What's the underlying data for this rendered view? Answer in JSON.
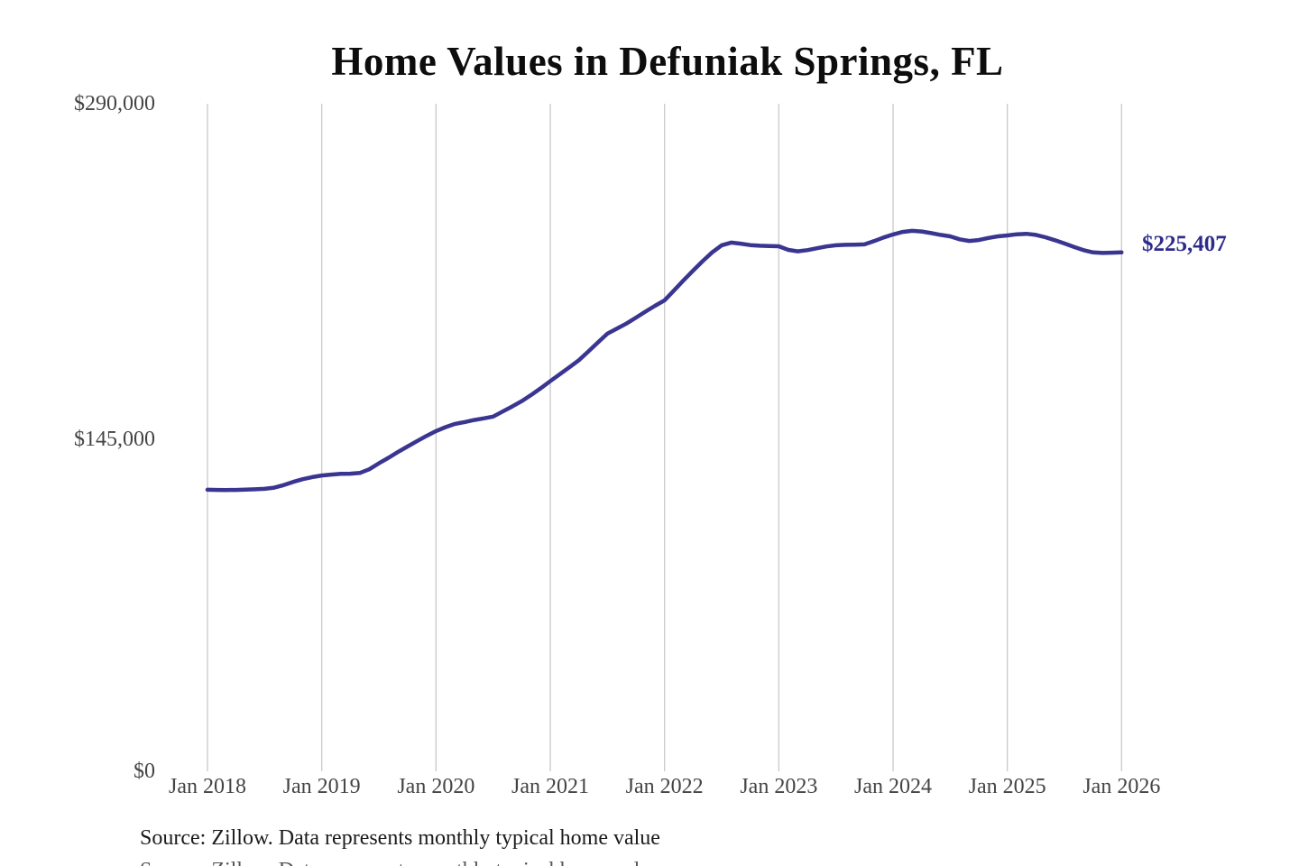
{
  "chart_data": {
    "type": "line",
    "title": "Home Values in Defuniak Springs, FL",
    "xlabel": "",
    "ylabel": "",
    "x_start": "Jan 2018",
    "x_end": "Jan 2026",
    "frequency": "monthly",
    "x_tick_labels": [
      "Jan 2018",
      "Jan 2019",
      "Jan 2020",
      "Jan 2021",
      "Jan 2022",
      "Jan 2023",
      "Jan 2024",
      "Jan 2025",
      "Jan 2026"
    ],
    "y_tick_labels": [
      "$290,000",
      "$145,000",
      "$0"
    ],
    "y_tick_values": [
      290000,
      145000,
      0
    ],
    "ylim": [
      0,
      290000
    ],
    "grid": "vertical-only",
    "legend": "none",
    "series": [
      {
        "name": "Monthly typical home value",
        "values": [
          122300,
          122250,
          122200,
          122250,
          122350,
          122500,
          122700,
          123200,
          124300,
          125700,
          126900,
          127800,
          128500,
          128900,
          129200,
          129300,
          129600,
          131200,
          133800,
          136200,
          138700,
          141100,
          143400,
          145700,
          147800,
          149500,
          150900,
          151700,
          152600,
          153300,
          154100,
          156300,
          158500,
          160800,
          163500,
          166400,
          169500,
          172500,
          175500,
          178600,
          182400,
          186300,
          190100,
          192300,
          194500,
          197100,
          199700,
          202200,
          204600,
          208900,
          213300,
          217500,
          221600,
          225400,
          228500,
          229700,
          229200,
          228600,
          228300,
          228200,
          228100,
          226500,
          225900,
          226400,
          227200,
          228000,
          228500,
          228700,
          228800,
          228900,
          230300,
          231900,
          233200,
          234300,
          234800,
          234500,
          233800,
          233000,
          232400,
          231100,
          230400,
          230800,
          231700,
          232400,
          232800,
          233300,
          233500,
          233000,
          232000,
          230700,
          229300,
          227800,
          226400,
          225400,
          225200,
          225300,
          225407
        ]
      }
    ],
    "final_value": 225407,
    "final_value_label": "$225,407",
    "source_note": "Source: Zillow. Data represents monthly typical home value",
    "colors": {
      "line": "#3a3590",
      "end_label": "#2e2c8a",
      "grid": "#c9c9c9",
      "axis_text": "#444444",
      "title_text": "#0d0d0d"
    }
  }
}
